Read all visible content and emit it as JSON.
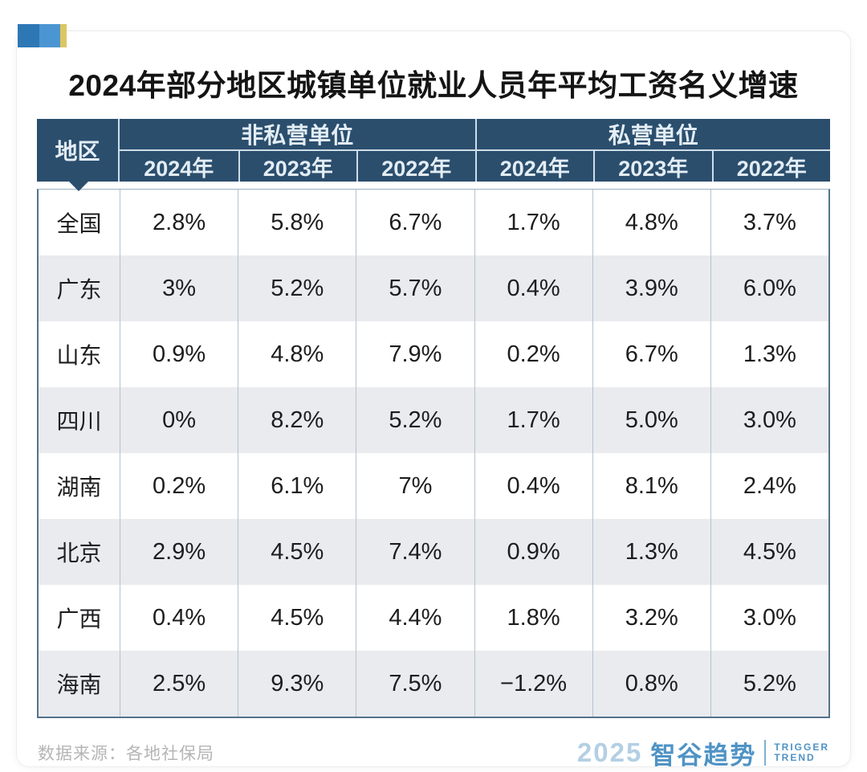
{
  "page": {
    "title": "2024年部分地区城镇单位就业人员年平均工资名义增速",
    "source_note": "数据来源：各地社保局"
  },
  "logo": {
    "year": "2025",
    "brand_cn": "智谷趋势",
    "brand_en_line1": "TRIGGER",
    "brand_en_line2": "TREND"
  },
  "colors": {
    "header_navy": "#2b4e6d",
    "row_alt_gray": "#e9ebef",
    "table_border": "#54738c",
    "brand_blue": "#4f93c5",
    "corner_dark_blue": "#2e77b5",
    "corner_light_blue": "#4b96d2",
    "corner_yellow": "#ddc662"
  },
  "chart_data": {
    "type": "table",
    "title": "2024年部分地区城镇单位就业人员年平均工资名义增速",
    "region_header": "地区",
    "groups": [
      {
        "label": "非私营单位",
        "years": [
          "2024年",
          "2023年",
          "2022年"
        ]
      },
      {
        "label": "私营单位",
        "years": [
          "2024年",
          "2023年",
          "2022年"
        ]
      }
    ],
    "rows": [
      {
        "region": "全国",
        "values": [
          "2.8%",
          "5.8%",
          "6.7%",
          "1.7%",
          "4.8%",
          "3.7%"
        ]
      },
      {
        "region": "广东",
        "values": [
          "3%",
          "5.2%",
          "5.7%",
          "0.4%",
          "3.9%",
          "6.0%"
        ]
      },
      {
        "region": "山东",
        "values": [
          "0.9%",
          "4.8%",
          "7.9%",
          "0.2%",
          "6.7%",
          "1.3%"
        ]
      },
      {
        "region": "四川",
        "values": [
          "0%",
          "8.2%",
          "5.2%",
          "1.7%",
          "5.0%",
          "3.0%"
        ]
      },
      {
        "region": "湖南",
        "values": [
          "0.2%",
          "6.1%",
          "7%",
          "0.4%",
          "8.1%",
          "2.4%"
        ]
      },
      {
        "region": "北京",
        "values": [
          "2.9%",
          "4.5%",
          "7.4%",
          "0.9%",
          "1.3%",
          "4.5%"
        ]
      },
      {
        "region": "广西",
        "values": [
          "0.4%",
          "4.5%",
          "4.4%",
          "1.8%",
          "3.2%",
          "3.0%"
        ]
      },
      {
        "region": "海南",
        "values": [
          "2.5%",
          "9.3%",
          "7.5%",
          "−1.2%",
          "0.8%",
          "5.2%"
        ]
      }
    ]
  }
}
